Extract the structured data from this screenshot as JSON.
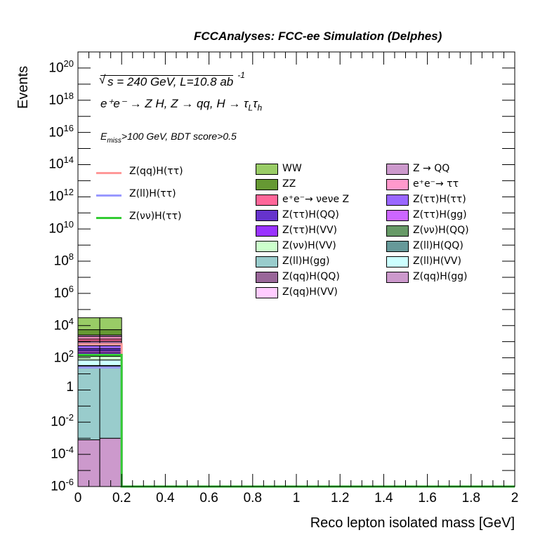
{
  "header": {
    "title": "FCCAnalyses: FCC-ee Simulation (Delphes)"
  },
  "annotations": {
    "energy": "s = 240 GeV, L=10.8 ab",
    "lumi_exp": "-1",
    "process": "e⁺e⁻ → Z H, Z → qq, H → τ",
    "tau1_sub": "L",
    "tau2": "τ",
    "tau2_sub": "h",
    "cut_prefix": "E",
    "cut_sub": "miss",
    "cut_rest": ">100 GeV, BDT score>0.5"
  },
  "axes": {
    "xlabel": "Reco lepton isolated mass [GeV]",
    "ylabel": "Events",
    "x_ticks": [
      "0",
      "0.2",
      "0.4",
      "0.6",
      "0.8",
      "1",
      "1.2",
      "1.4",
      "1.6",
      "1.8",
      "2"
    ],
    "y_ticks": [
      {
        "base": "10",
        "exp": "20",
        "v": 20
      },
      {
        "base": "10",
        "exp": "18",
        "v": 18
      },
      {
        "base": "10",
        "exp": "16",
        "v": 16
      },
      {
        "base": "10",
        "exp": "14",
        "v": 14
      },
      {
        "base": "10",
        "exp": "12",
        "v": 12
      },
      {
        "base": "10",
        "exp": "10",
        "v": 10
      },
      {
        "base": "10",
        "exp": "8",
        "v": 8
      },
      {
        "base": "10",
        "exp": "6",
        "v": 6
      },
      {
        "base": "10",
        "exp": "4",
        "v": 4
      },
      {
        "base": "10",
        "exp": "2",
        "v": 2
      },
      {
        "base": "1",
        "exp": "",
        "v": 0
      },
      {
        "base": "10",
        "exp": "-2",
        "v": -2
      },
      {
        "base": "10",
        "exp": "-4",
        "v": -4
      },
      {
        "base": "10",
        "exp": "-6",
        "v": -6
      }
    ]
  },
  "legend_signals": [
    {
      "label": "Z(qq)H(ττ)",
      "color": "#ff9999"
    },
    {
      "label": "Z(ll)H(ττ)",
      "color": "#9999ff"
    },
    {
      "label": "Z(νν)H(ττ)",
      "color": "#33cc33"
    }
  ],
  "legend_backgrounds": [
    {
      "label": "WW",
      "color": "#99cc66"
    },
    {
      "label": "Z → QQ",
      "color": "#cc99cc"
    },
    {
      "label": "ZZ",
      "color": "#669933"
    },
    {
      "label": "e⁺e⁻→ ττ",
      "color": "#ff99cc"
    },
    {
      "label": "e⁺e⁻→ νeνe Z",
      "color": "#ff6699"
    },
    {
      "label": "Z(ττ)H(ττ)",
      "color": "#9966ff"
    },
    {
      "label": "Z(ττ)H(QQ)",
      "color": "#6633cc"
    },
    {
      "label": "Z(ττ)H(gg)",
      "color": "#cc66ff"
    },
    {
      "label": "Z(ττ)H(VV)",
      "color": "#9933ff"
    },
    {
      "label": "Z(νν)H(QQ)",
      "color": "#669966"
    },
    {
      "label": "Z(νν)H(VV)",
      "color": "#ccffcc"
    },
    {
      "label": "Z(ll)H(QQ)",
      "color": "#669999"
    },
    {
      "label": "Z(ll)H(gg)",
      "color": "#99cccc"
    },
    {
      "label": "Z(ll)H(VV)",
      "color": "#ccffff"
    },
    {
      "label": "Z(qq)H(QQ)",
      "color": "#996699"
    },
    {
      "label": "Z(qq)H(gg)",
      "color": "#cc99cc"
    },
    {
      "label": "Z(qq)H(VV)",
      "color": "#ffccff"
    }
  ],
  "chart_data": {
    "type": "bar",
    "log_y": true,
    "xlim": [
      0,
      2
    ],
    "ylim": [
      1e-06,
      1e+21
    ],
    "bins": [
      [
        0,
        0.1
      ],
      [
        0.1,
        0.2
      ]
    ],
    "stack_order_note": "",
    "background_stack": [
      {
        "name": "Z(qq)H(gg)",
        "color": "#cc99cc",
        "values": [
          0.0008,
          0.001
        ]
      },
      {
        "name": "Z(ll)H(gg)",
        "color": "#99cccc",
        "values": [
          30,
          30
        ]
      },
      {
        "name": "Z(ll)H(QQ)",
        "color": "#669999",
        "values": [
          3,
          3
        ]
      },
      {
        "name": "Z(ll)H(VV)",
        "color": "#ccffff",
        "values": [
          40,
          40
        ]
      },
      {
        "name": "Z(νν)H(VV)",
        "color": "#ccffcc",
        "values": [
          50,
          50
        ]
      },
      {
        "name": "Z(νν)H(QQ)",
        "color": "#669966",
        "values": [
          40,
          40
        ]
      },
      {
        "name": "Z(ττ)H(VV)",
        "color": "#9933ff",
        "values": [
          40,
          40
        ]
      },
      {
        "name": "Z(ττ)H(gg)",
        "color": "#cc66ff",
        "values": [
          60,
          60
        ]
      },
      {
        "name": "Z(ττ)H(QQ)",
        "color": "#6633cc",
        "values": [
          100,
          100
        ]
      },
      {
        "name": "Z(ττ)H(ττ)",
        "color": "#9966ff",
        "values": [
          200,
          200
        ]
      },
      {
        "name": "Z(qq)H(VV)",
        "color": "#ffccff",
        "values": [
          200,
          200
        ]
      },
      {
        "name": "Z(qq)H(QQ)",
        "color": "#996699",
        "values": [
          300,
          300
        ]
      },
      {
        "name": "e⁺e⁻→ νeνe Z",
        "color": "#ff6699",
        "values": [
          400,
          400
        ]
      },
      {
        "name": "e⁺e⁻→ ττ",
        "color": "#ff99cc",
        "values": [
          600,
          600
        ]
      },
      {
        "name": "Z → QQ",
        "color": "#cc99cc",
        "values": [
          500,
          500
        ]
      },
      {
        "name": "ZZ",
        "color": "#669933",
        "values": [
          3000,
          3000
        ]
      },
      {
        "name": "WW",
        "color": "#99cc66",
        "values": [
          25000,
          25000
        ]
      }
    ],
    "signals": [
      {
        "name": "Z(qq)H(ττ)",
        "color": "#ff9999",
        "values": [
          700,
          700
        ]
      },
      {
        "name": "Z(ll)H(ττ)",
        "color": "#9999ff",
        "values": [
          25,
          25
        ]
      },
      {
        "name": "Z(νν)H(ττ)",
        "color": "#33cc33",
        "values": [
          150,
          150
        ]
      }
    ]
  }
}
